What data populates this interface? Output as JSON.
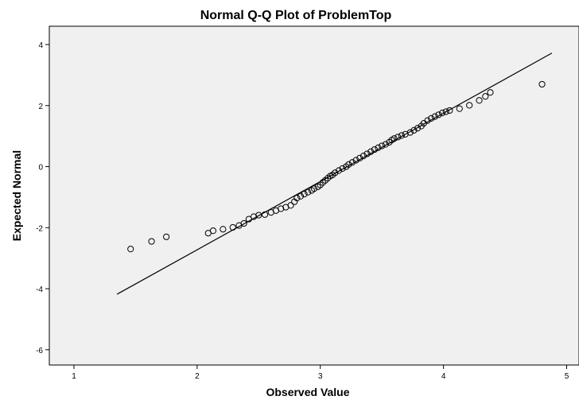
{
  "chart_data": {
    "type": "scatter",
    "title": "Normal Q-Q Plot of ProblemTop",
    "xlabel": "Observed Value",
    "ylabel": "Expected Normal",
    "xlim": [
      0.8,
      5.1
    ],
    "ylim": [
      -6.5,
      4.6
    ],
    "x_ticks": [
      1,
      2,
      3,
      4,
      5
    ],
    "y_ticks": [
      4,
      2,
      0,
      -2,
      -4,
      -6
    ],
    "grid": false,
    "reference_line": [
      [
        1.35,
        -4.18
      ],
      [
        4.88,
        3.72
      ]
    ],
    "series": [
      {
        "points": [
          [
            1.46,
            -2.7
          ],
          [
            1.63,
            -2.45
          ],
          [
            1.75,
            -2.3
          ],
          [
            2.09,
            -2.18
          ],
          [
            2.13,
            -2.1
          ],
          [
            2.21,
            -2.05
          ],
          [
            2.29,
            -1.99
          ],
          [
            2.34,
            -1.93
          ],
          [
            2.38,
            -1.86
          ],
          [
            2.42,
            -1.72
          ],
          [
            2.46,
            -1.64
          ],
          [
            2.5,
            -1.59
          ],
          [
            2.55,
            -1.57
          ],
          [
            2.6,
            -1.5
          ],
          [
            2.64,
            -1.44
          ],
          [
            2.68,
            -1.38
          ],
          [
            2.72,
            -1.33
          ],
          [
            2.76,
            -1.27
          ],
          [
            2.79,
            -1.15
          ],
          [
            2.81,
            -1.03
          ],
          [
            2.84,
            -0.97
          ],
          [
            2.87,
            -0.9
          ],
          [
            2.9,
            -0.84
          ],
          [
            2.93,
            -0.78
          ],
          [
            2.95,
            -0.72
          ],
          [
            2.98,
            -0.66
          ],
          [
            3.0,
            -0.6
          ],
          [
            3.02,
            -0.52
          ],
          [
            3.04,
            -0.45
          ],
          [
            3.06,
            -0.38
          ],
          [
            3.08,
            -0.31
          ],
          [
            3.1,
            -0.27
          ],
          [
            3.12,
            -0.2
          ],
          [
            3.15,
            -0.13
          ],
          [
            3.18,
            -0.06
          ],
          [
            3.21,
            0.0
          ],
          [
            3.23,
            0.07
          ],
          [
            3.26,
            0.14
          ],
          [
            3.29,
            0.21
          ],
          [
            3.32,
            0.28
          ],
          [
            3.35,
            0.35
          ],
          [
            3.38,
            0.42
          ],
          [
            3.41,
            0.49
          ],
          [
            3.44,
            0.56
          ],
          [
            3.47,
            0.62
          ],
          [
            3.5,
            0.68
          ],
          [
            3.53,
            0.73
          ],
          [
            3.56,
            0.8
          ],
          [
            3.58,
            0.87
          ],
          [
            3.6,
            0.92
          ],
          [
            3.63,
            0.97
          ],
          [
            3.66,
            1.02
          ],
          [
            3.69,
            1.06
          ],
          [
            3.73,
            1.12
          ],
          [
            3.76,
            1.19
          ],
          [
            3.79,
            1.26
          ],
          [
            3.82,
            1.33
          ],
          [
            3.84,
            1.42
          ],
          [
            3.87,
            1.51
          ],
          [
            3.9,
            1.58
          ],
          [
            3.93,
            1.64
          ],
          [
            3.96,
            1.7
          ],
          [
            3.99,
            1.76
          ],
          [
            4.02,
            1.8
          ],
          [
            4.05,
            1.84
          ],
          [
            4.13,
            1.9
          ],
          [
            4.21,
            2.01
          ],
          [
            4.29,
            2.17
          ],
          [
            4.34,
            2.3
          ],
          [
            4.38,
            2.43
          ],
          [
            4.8,
            2.7
          ]
        ]
      }
    ]
  }
}
